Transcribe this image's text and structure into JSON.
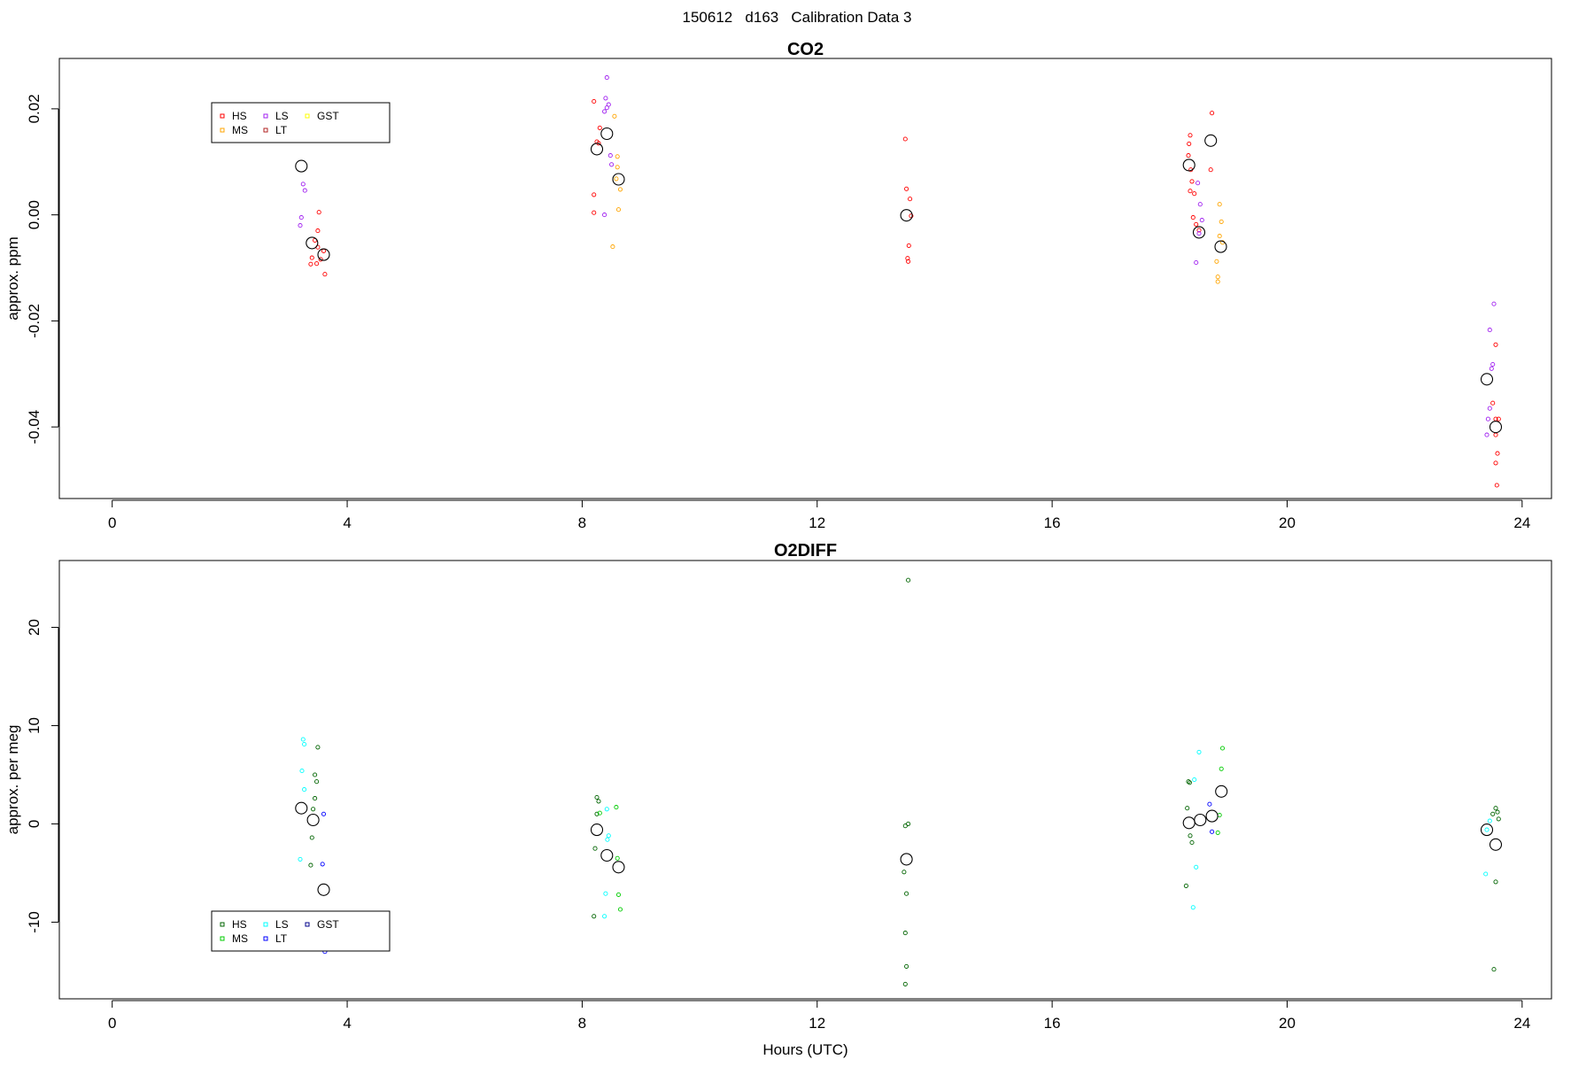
{
  "figure": {
    "suptitle": "150612   d163   Calibration Data 3"
  },
  "chart_data": [
    {
      "type": "scatter",
      "title": "CO2",
      "xlabel": "",
      "ylabel": "approx. ppm",
      "xlim": [
        -0.9,
        24.5
      ],
      "ylim": [
        -0.0535,
        0.0295
      ],
      "xticks": [
        0,
        4,
        8,
        12,
        16,
        20,
        24
      ],
      "xtick_labels": [
        "0",
        "4",
        "8",
        "12",
        "16",
        "20",
        "24"
      ],
      "yticks": [
        -0.04,
        -0.02,
        0.0,
        0.02
      ],
      "ytick_labels": [
        "-0.04",
        "-0.02",
        "0.00",
        "0.02"
      ],
      "grid": false,
      "legend": {
        "placement": "top-left",
        "entries": [
          {
            "name": "HS",
            "color": "#ff0000",
            "col": 0,
            "row": 0
          },
          {
            "name": "MS",
            "color": "#ffa500",
            "col": 0,
            "row": 1
          },
          {
            "name": "LS",
            "color": "#a020f0",
            "col": 1,
            "row": 0
          },
          {
            "name": "LT",
            "color": "#b22222",
            "col": 1,
            "row": 1
          },
          {
            "name": "GST",
            "color": "#ffff00",
            "col": 2,
            "row": 0
          }
        ]
      },
      "series": [
        {
          "name": "HS",
          "color": "#ff0000",
          "points": [
            [
              3.45,
              -0.0048
            ],
            [
              3.5,
              -0.0061
            ],
            [
              3.4,
              -0.0081
            ],
            [
              3.48,
              -0.0092
            ],
            [
              3.5,
              -0.003
            ],
            [
              3.55,
              -0.0084
            ],
            [
              3.62,
              -0.0112
            ],
            [
              3.6,
              -0.0068
            ],
            [
              3.52,
              0.0005
            ],
            [
              3.38,
              -0.0093
            ],
            [
              8.2,
              0.0214
            ],
            [
              8.3,
              0.0164
            ],
            [
              8.25,
              0.0138
            ],
            [
              8.2,
              0.0038
            ],
            [
              8.2,
              0.0004
            ],
            [
              8.28,
              0.0135
            ],
            [
              13.5,
              0.0143
            ],
            [
              13.52,
              0.0049
            ],
            [
              13.58,
              0.003
            ],
            [
              13.56,
              -0.0058
            ],
            [
              13.55,
              -0.0088
            ],
            [
              13.54,
              -0.0082
            ],
            [
              13.6,
              -0.0002
            ],
            [
              18.35,
              0.015
            ],
            [
              18.33,
              0.0134
            ],
            [
              18.32,
              0.0112
            ],
            [
              18.36,
              0.0085
            ],
            [
              18.38,
              0.0063
            ],
            [
              18.35,
              0.0045
            ],
            [
              18.42,
              0.004
            ],
            [
              18.4,
              -0.0005
            ],
            [
              18.45,
              -0.0018
            ],
            [
              18.5,
              -0.0029
            ],
            [
              18.72,
              0.0192
            ],
            [
              18.7,
              0.0085
            ],
            [
              23.55,
              -0.0245
            ],
            [
              23.5,
              -0.0355
            ],
            [
              23.55,
              -0.0385
            ],
            [
              23.6,
              -0.0385
            ],
            [
              23.55,
              -0.0415
            ],
            [
              23.58,
              -0.045
            ],
            [
              23.55,
              -0.0468
            ],
            [
              23.57,
              -0.051
            ]
          ]
        },
        {
          "name": "MS",
          "color": "#ffa500",
          "points": [
            [
              8.55,
              0.0186
            ],
            [
              8.6,
              0.011
            ],
            [
              8.6,
              0.009
            ],
            [
              8.65,
              0.0048
            ],
            [
              8.62,
              0.001
            ],
            [
              8.52,
              -0.006
            ],
            [
              8.58,
              0.0068
            ],
            [
              18.85,
              0.002
            ],
            [
              18.88,
              -0.0013
            ],
            [
              18.85,
              -0.004
            ],
            [
              18.8,
              -0.0088
            ],
            [
              18.82,
              -0.0117
            ],
            [
              18.82,
              -0.0126
            ],
            [
              18.9,
              -0.0052
            ]
          ]
        },
        {
          "name": "LS",
          "color": "#a020f0",
          "points": [
            [
              3.25,
              0.0058
            ],
            [
              3.28,
              0.0046
            ],
            [
              3.22,
              -0.0005
            ],
            [
              3.2,
              -0.002
            ],
            [
              8.42,
              0.0259
            ],
            [
              8.4,
              0.022
            ],
            [
              8.45,
              0.0208
            ],
            [
              8.42,
              0.0202
            ],
            [
              8.38,
              0.0195
            ],
            [
              8.48,
              0.0112
            ],
            [
              8.5,
              0.0095
            ],
            [
              8.38,
              0.0
            ],
            [
              18.48,
              0.006
            ],
            [
              18.52,
              0.002
            ],
            [
              18.55,
              -0.001
            ],
            [
              18.45,
              -0.009
            ],
            [
              18.5,
              -0.0035
            ],
            [
              23.52,
              -0.0168
            ],
            [
              23.45,
              -0.0217
            ],
            [
              23.5,
              -0.0282
            ],
            [
              23.48,
              -0.029
            ],
            [
              23.45,
              -0.0365
            ],
            [
              23.42,
              -0.0385
            ],
            [
              23.4,
              -0.0415
            ]
          ]
        },
        {
          "name": "Mean",
          "color": "#000000",
          "large": true,
          "points": [
            [
              3.22,
              0.0092
            ],
            [
              3.4,
              -0.0053
            ],
            [
              3.6,
              -0.0075
            ],
            [
              8.25,
              0.0124
            ],
            [
              8.42,
              0.0153
            ],
            [
              8.62,
              0.0067
            ],
            [
              13.52,
              -0.0001
            ],
            [
              18.33,
              0.0094
            ],
            [
              18.5,
              -0.0033
            ],
            [
              18.7,
              0.014
            ],
            [
              18.87,
              -0.006
            ],
            [
              23.4,
              -0.031
            ],
            [
              23.55,
              -0.04
            ]
          ]
        }
      ]
    },
    {
      "type": "scatter",
      "title": "O2DIFF",
      "xlabel": "Hours (UTC)",
      "ylabel": "approx. per meg",
      "xlim": [
        -0.9,
        24.5
      ],
      "ylim": [
        -17.8,
        26.8
      ],
      "xticks": [
        0,
        4,
        8,
        12,
        16,
        20,
        24
      ],
      "xtick_labels": [
        "0",
        "4",
        "8",
        "12",
        "16",
        "20",
        "24"
      ],
      "yticks": [
        -10,
        0,
        10,
        20
      ],
      "ytick_labels": [
        "-10",
        "0",
        "10",
        "20"
      ],
      "grid": false,
      "legend": {
        "placement": "bottom-left",
        "entries": [
          {
            "name": "HS",
            "color": "#006400",
            "col": 0,
            "row": 0
          },
          {
            "name": "MS",
            "color": "#00cc00",
            "col": 0,
            "row": 1
          },
          {
            "name": "LS",
            "color": "#00ffff",
            "col": 1,
            "row": 0
          },
          {
            "name": "LT",
            "color": "#0000ff",
            "col": 1,
            "row": 1
          },
          {
            "name": "GST",
            "color": "#00008b",
            "col": 2,
            "row": 0
          }
        ]
      },
      "series": [
        {
          "name": "HS",
          "color": "#006400",
          "points": [
            [
              3.45,
              5.0
            ],
            [
              3.48,
              4.3
            ],
            [
              3.45,
              2.6
            ],
            [
              3.42,
              1.5
            ],
            [
              3.4,
              -1.4
            ],
            [
              3.38,
              -4.2
            ],
            [
              3.5,
              7.8
            ],
            [
              8.25,
              2.7
            ],
            [
              8.28,
              2.3
            ],
            [
              8.25,
              1.0
            ],
            [
              8.22,
              -2.5
            ],
            [
              8.2,
              -9.4
            ],
            [
              13.5,
              -0.2
            ],
            [
              13.55,
              0.0
            ],
            [
              13.48,
              -4.9
            ],
            [
              13.52,
              -7.1
            ],
            [
              13.5,
              -11.1
            ],
            [
              13.52,
              -14.5
            ],
            [
              13.5,
              -16.3
            ],
            [
              13.55,
              24.8
            ],
            [
              18.32,
              4.3
            ],
            [
              18.3,
              1.6
            ],
            [
              18.35,
              -1.2
            ],
            [
              18.38,
              -1.9
            ],
            [
              18.28,
              -6.3
            ],
            [
              18.34,
              4.2
            ],
            [
              23.55,
              1.6
            ],
            [
              23.5,
              1.0
            ],
            [
              23.6,
              0.5
            ],
            [
              23.55,
              -5.9
            ],
            [
              23.52,
              -14.8
            ],
            [
              23.58,
              1.2
            ]
          ]
        },
        {
          "name": "MS",
          "color": "#00cc00",
          "points": [
            [
              8.58,
              1.7
            ],
            [
              8.6,
              -3.5
            ],
            [
              8.62,
              -7.2
            ],
            [
              8.65,
              -8.7
            ],
            [
              8.3,
              1.1
            ],
            [
              18.9,
              7.7
            ],
            [
              18.88,
              5.6
            ],
            [
              18.85,
              0.9
            ],
            [
              18.82,
              -0.9
            ]
          ]
        },
        {
          "name": "LS",
          "color": "#00ffff",
          "points": [
            [
              3.25,
              8.6
            ],
            [
              3.27,
              8.1
            ],
            [
              3.23,
              5.4
            ],
            [
              3.27,
              3.5
            ],
            [
              3.2,
              -3.6
            ],
            [
              8.42,
              1.5
            ],
            [
              8.45,
              -1.2
            ],
            [
              8.43,
              -1.6
            ],
            [
              8.4,
              -7.1
            ],
            [
              8.38,
              -9.4
            ],
            [
              18.42,
              4.5
            ],
            [
              18.5,
              7.3
            ],
            [
              18.45,
              -4.4
            ],
            [
              18.4,
              -8.5
            ],
            [
              23.45,
              0.3
            ],
            [
              23.4,
              -0.6
            ],
            [
              23.38,
              -5.1
            ]
          ]
        },
        {
          "name": "LT",
          "color": "#0000ff",
          "points": [
            [
              3.6,
              1.0
            ],
            [
              3.58,
              -4.1
            ],
            [
              3.62,
              -13.0
            ],
            [
              18.68,
              2.0
            ],
            [
              18.72,
              -0.8
            ]
          ]
        },
        {
          "name": "Mean",
          "color": "#000000",
          "large": true,
          "points": [
            [
              3.22,
              1.6
            ],
            [
              3.42,
              0.4
            ],
            [
              3.6,
              -6.7
            ],
            [
              8.25,
              -0.6
            ],
            [
              8.42,
              -3.2
            ],
            [
              8.62,
              -4.4
            ],
            [
              13.52,
              -3.6
            ],
            [
              18.33,
              0.1
            ],
            [
              18.52,
              0.4
            ],
            [
              18.72,
              0.8
            ],
            [
              18.88,
              3.3
            ],
            [
              23.4,
              -0.6
            ],
            [
              23.55,
              -2.1
            ]
          ]
        }
      ]
    }
  ]
}
